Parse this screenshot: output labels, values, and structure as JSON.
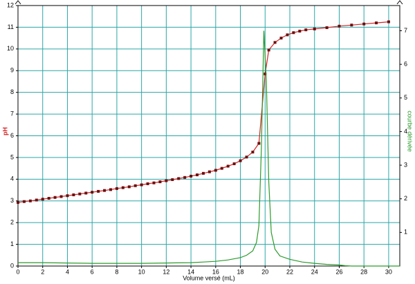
{
  "chart_data": {
    "type": "line",
    "x_label": "Volume versé (mL)",
    "y_label": "pH",
    "y2_label": "courbe dérivée",
    "xlim": [
      0,
      30.9
    ],
    "xticks": [
      0,
      2,
      4,
      6,
      8,
      10,
      12,
      14,
      16,
      18,
      20,
      22,
      24,
      26,
      28,
      30
    ],
    "ylim": [
      0,
      12
    ],
    "yticks": [
      0,
      1,
      2,
      3,
      4,
      5,
      6,
      7,
      8,
      9,
      10,
      11,
      12
    ],
    "y2lim": [
      0,
      7.75
    ],
    "y2ticks": [
      1,
      2,
      3,
      4,
      5,
      6,
      7
    ],
    "grid": true,
    "series": [
      {
        "color": "#d42020",
        "marker_color": "#6b1010",
        "axis": "y",
        "x": [
          0,
          0.5,
          1,
          1.5,
          2,
          2.5,
          3,
          3.5,
          4,
          4.5,
          5,
          5.5,
          6,
          6.5,
          7,
          7.5,
          8,
          8.5,
          9,
          9.5,
          10,
          10.5,
          11,
          11.5,
          12,
          12.5,
          13,
          13.5,
          14,
          14.5,
          15,
          15.5,
          16,
          16.5,
          17,
          17.5,
          18,
          18.5,
          19,
          19.5,
          20,
          20.3,
          20.8,
          21.3,
          21.8,
          22.3,
          22.8,
          23.3,
          24,
          25,
          26,
          27,
          28,
          29,
          30
        ],
        "values": [
          2.93,
          2.97,
          3.0,
          3.04,
          3.08,
          3.12,
          3.16,
          3.2,
          3.24,
          3.28,
          3.32,
          3.36,
          3.4,
          3.44,
          3.48,
          3.52,
          3.57,
          3.61,
          3.65,
          3.7,
          3.74,
          3.79,
          3.83,
          3.88,
          3.93,
          3.98,
          4.03,
          4.08,
          4.14,
          4.2,
          4.27,
          4.34,
          4.41,
          4.5,
          4.6,
          4.71,
          4.85,
          5.02,
          5.25,
          5.65,
          8.85,
          9.95,
          10.3,
          10.5,
          10.65,
          10.75,
          10.82,
          10.88,
          10.92,
          10.98,
          11.05,
          11.1,
          11.15,
          11.2,
          11.25
        ]
      },
      {
        "color": "#2a9a2a",
        "axis": "y2",
        "x": [
          0,
          2,
          4,
          6,
          8,
          10,
          12,
          14,
          15,
          16,
          17,
          18,
          18.5,
          19,
          19.3,
          19.5,
          19.7,
          19.9,
          20.1,
          20.3,
          20.5,
          20.8,
          21.2,
          22,
          23,
          24,
          25,
          26,
          26.5,
          27,
          30.9
        ],
        "values": [
          0.1,
          0.1,
          0.09,
          0.08,
          0.08,
          0.08,
          0.09,
          0.1,
          0.12,
          0.14,
          0.18,
          0.25,
          0.32,
          0.45,
          0.7,
          1.2,
          3.5,
          7.0,
          5.5,
          2.5,
          1.0,
          0.5,
          0.3,
          0.2,
          0.12,
          0.08,
          0.05,
          0.03,
          0.01,
          0,
          0
        ]
      }
    ]
  }
}
